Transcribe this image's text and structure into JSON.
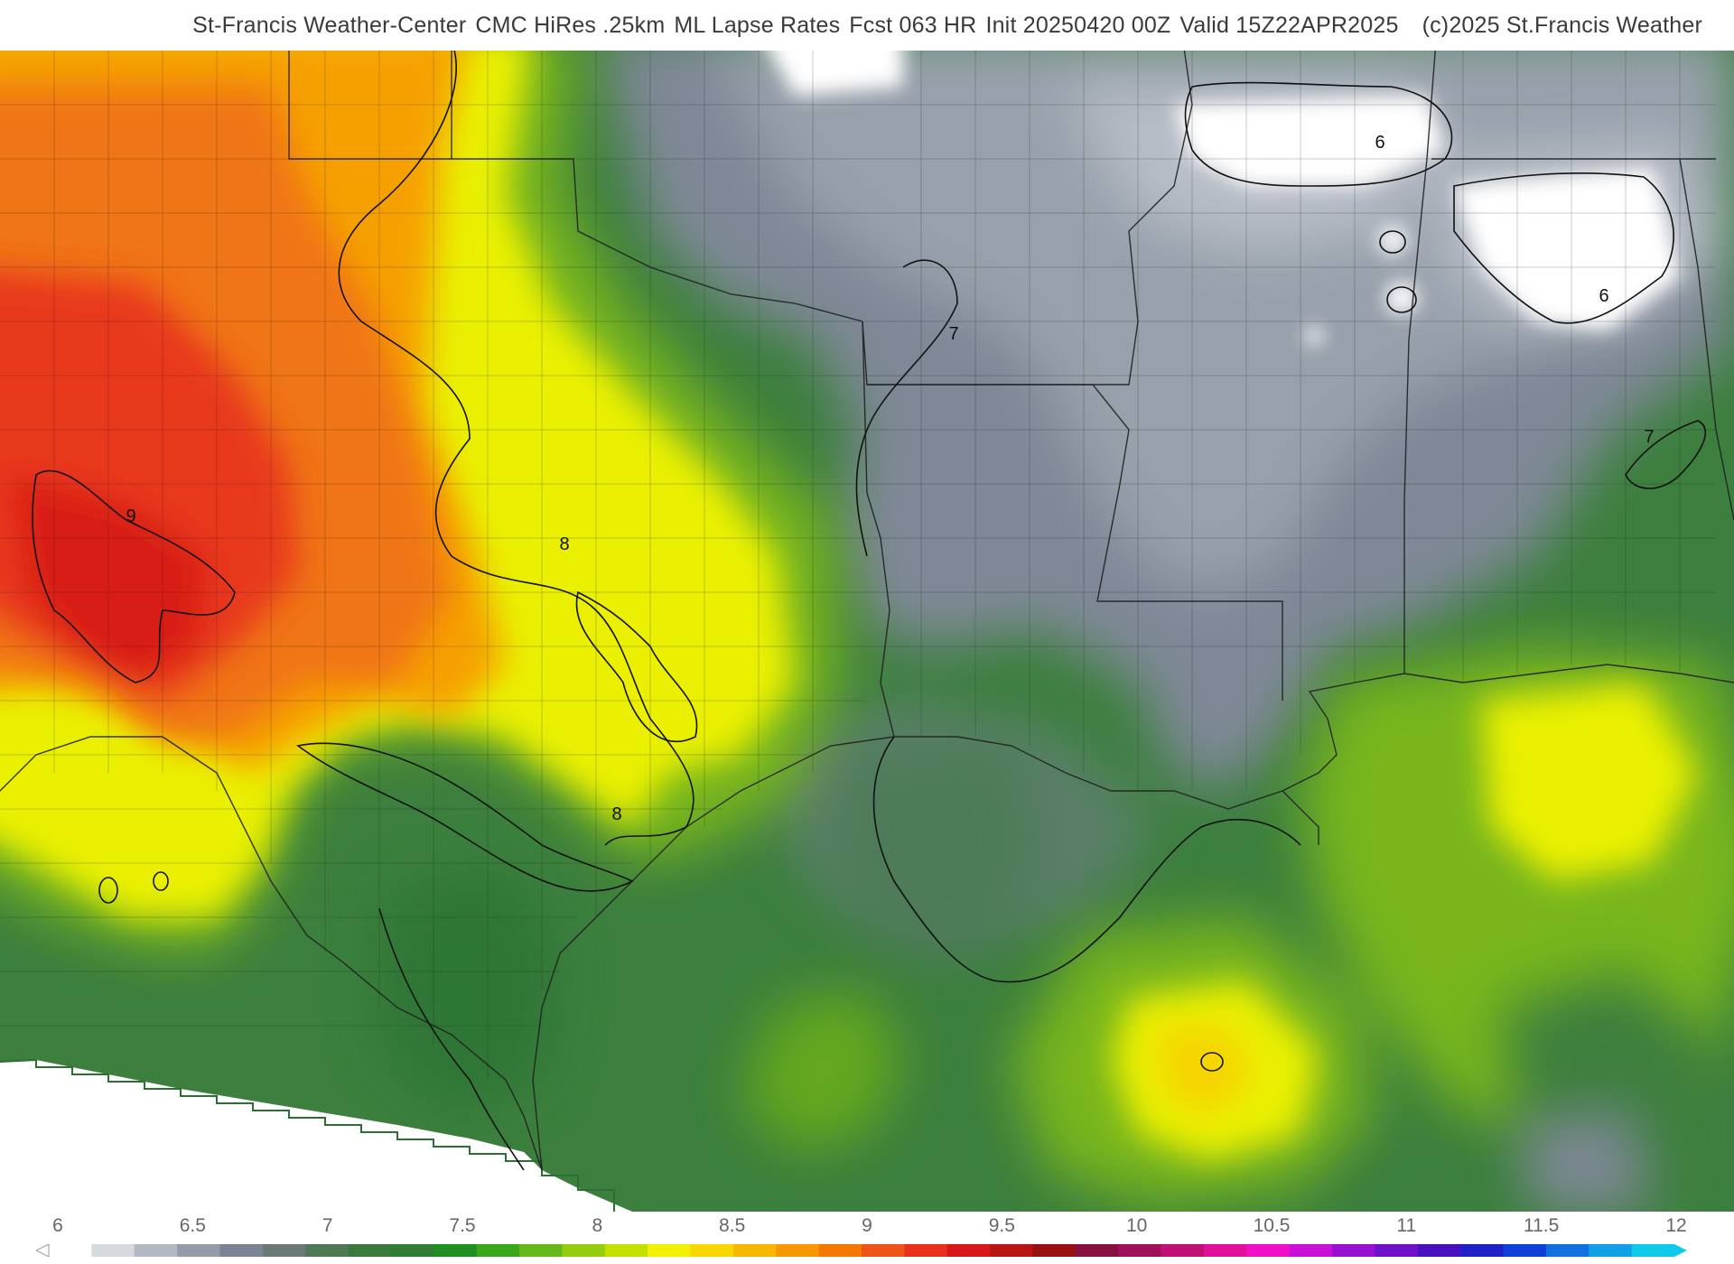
{
  "header": {
    "source": "St-Francis Weather-Center",
    "model": "CMC HiRes .25km",
    "parameter": "ML Lapse Rates",
    "forecast_hour": "Fcst 063 HR",
    "init": "Init 20250420 00Z",
    "valid": "Valid 15Z22APR2025",
    "copyright": "(c)2025 St.Francis Weather"
  },
  "map": {
    "region": "South-central United States and Gulf of Mexico",
    "field": "mixed-layer lapse rate",
    "contour_labels": [
      "9",
      "8",
      "8",
      "7",
      "7",
      "6",
      "6"
    ],
    "colors": {
      "low_gray": "#8a929e",
      "green": "#2e7d32",
      "light_green": "#7cbd1e",
      "yellow": "#f2f200",
      "orange": "#f8a400",
      "red": "#e8301c",
      "no_data": "#ffffff"
    }
  },
  "colorbar": {
    "labels": [
      "6",
      "6.5",
      "7",
      "7.5",
      "8",
      "8.5",
      "9",
      "9.5",
      "10",
      "10.5",
      "11",
      "11.5",
      "12"
    ],
    "min": 6,
    "max": 12,
    "colors": [
      "#ffffff",
      "#d6d9de",
      "#b4bac3",
      "#959ca8",
      "#7b8494",
      "#6b7a78",
      "#4d7a55",
      "#3a7a3c",
      "#2e7d32",
      "#1f8f22",
      "#3aa61a",
      "#66b81a",
      "#94cc10",
      "#c4e000",
      "#f2f200",
      "#f8d800",
      "#f8b800",
      "#f89800",
      "#f47800",
      "#ee5418",
      "#e8301c",
      "#d81818",
      "#b81414",
      "#981010",
      "#861040",
      "#a0105a",
      "#c01078",
      "#e0109a",
      "#f010c8",
      "#c810d8",
      "#9810d0",
      "#7010c8",
      "#4810c0",
      "#2020c8",
      "#1040d8",
      "#1070e0",
      "#10a0e8",
      "#10c8e8"
    ]
  }
}
